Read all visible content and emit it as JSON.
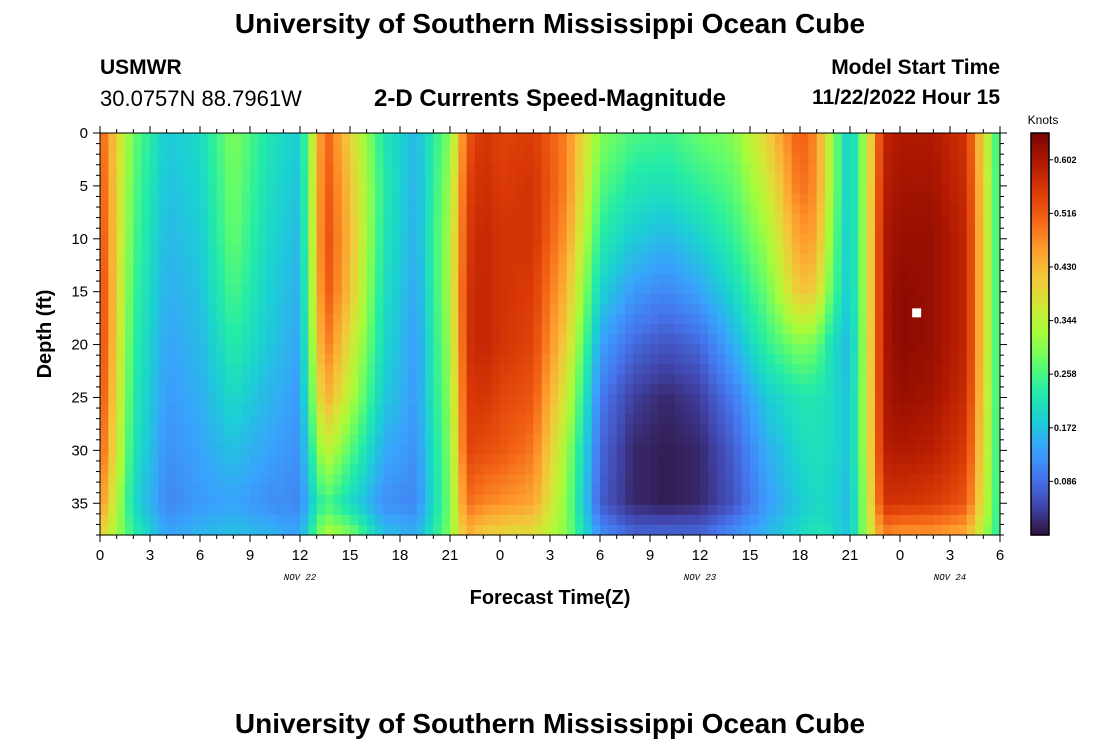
{
  "header": {
    "title": "University of Southern Mississippi Ocean Cube",
    "station": "USMWR",
    "coordinates": "30.0757N  88.7961W",
    "subtitle": "2-D Currents Speed-Magnitude",
    "model_start_label": "Model Start Time",
    "model_start_value": "11/22/2022 Hour 15"
  },
  "footer": {
    "title": "University of Southern Mississippi Ocean Cube"
  },
  "colors": {
    "colormap": [
      "#30123b",
      "#4145ab",
      "#4675ed",
      "#39a2fc",
      "#1bcfd4",
      "#24eca6",
      "#61fc6c",
      "#a4fc3b",
      "#d1e834",
      "#f3c63a",
      "#fe9b2d",
      "#f36315",
      "#d93806",
      "#b11901",
      "#7a0402"
    ]
  },
  "chart_data": {
    "type": "heatmap",
    "xlabel": "Forecast Time(Z)",
    "ylabel": "Depth (ft)",
    "colorbar_label": "Knots",
    "colorbar_ticks": [
      0.086,
      0.172,
      0.258,
      0.344,
      0.43,
      0.516,
      0.602
    ],
    "colorbar_tick_labels": [
      "0.086",
      "0.172",
      "0.258",
      "0.344",
      "0.430",
      "0.516",
      "0.602"
    ],
    "value_range": [
      0.0,
      0.645
    ],
    "x_ticks": [
      "0",
      "3",
      "6",
      "9",
      "12",
      "15",
      "18",
      "21",
      "0",
      "3",
      "6",
      "9",
      "12",
      "15",
      "18",
      "21",
      "0",
      "3",
      "6"
    ],
    "date_labels": [
      {
        "text": "NOV 22",
        "at_hour": 12
      },
      {
        "text": "NOV 23",
        "at_hour": 36
      },
      {
        "text": "NOV 24",
        "at_hour": 51
      }
    ],
    "y_ticks": [
      0,
      5,
      10,
      15,
      20,
      25,
      30,
      35
    ],
    "xlim_hours": [
      0,
      54
    ],
    "ylim_ft": [
      0,
      38
    ],
    "y_inverted": true,
    "x_hours": [
      0,
      2,
      4,
      6,
      8,
      10,
      12,
      13.5,
      15,
      17,
      19,
      21,
      22,
      23,
      24,
      26,
      28,
      30,
      32,
      34,
      36,
      38,
      40,
      42,
      43,
      44,
      45,
      46,
      47,
      48,
      50,
      52,
      54
    ],
    "depth_ft": [
      0,
      5,
      10,
      15,
      20,
      25,
      30,
      35,
      38
    ],
    "speed_knots_grid": [
      [
        0.52,
        0.28,
        0.18,
        0.2,
        0.3,
        0.22,
        0.18,
        0.52,
        0.4,
        0.22,
        0.16,
        0.3,
        0.52,
        0.56,
        0.54,
        0.55,
        0.48,
        0.3,
        0.26,
        0.25,
        0.28,
        0.3,
        0.4,
        0.52,
        0.47,
        0.3,
        0.17,
        0.35,
        0.58,
        0.6,
        0.6,
        0.56,
        0.22
      ],
      [
        0.53,
        0.27,
        0.17,
        0.19,
        0.29,
        0.21,
        0.17,
        0.53,
        0.42,
        0.23,
        0.15,
        0.32,
        0.54,
        0.57,
        0.55,
        0.56,
        0.48,
        0.27,
        0.22,
        0.21,
        0.24,
        0.27,
        0.36,
        0.5,
        0.47,
        0.3,
        0.17,
        0.35,
        0.59,
        0.61,
        0.61,
        0.57,
        0.22
      ],
      [
        0.54,
        0.26,
        0.16,
        0.18,
        0.28,
        0.2,
        0.16,
        0.54,
        0.43,
        0.22,
        0.15,
        0.33,
        0.55,
        0.58,
        0.56,
        0.56,
        0.46,
        0.23,
        0.18,
        0.16,
        0.19,
        0.24,
        0.32,
        0.46,
        0.45,
        0.28,
        0.17,
        0.35,
        0.6,
        0.62,
        0.62,
        0.58,
        0.22
      ],
      [
        0.55,
        0.25,
        0.15,
        0.17,
        0.26,
        0.19,
        0.15,
        0.53,
        0.42,
        0.21,
        0.14,
        0.33,
        0.56,
        0.58,
        0.56,
        0.55,
        0.43,
        0.19,
        0.13,
        0.11,
        0.14,
        0.2,
        0.28,
        0.42,
        0.4,
        0.26,
        0.17,
        0.35,
        0.6,
        0.63,
        0.62,
        0.58,
        0.22
      ],
      [
        0.55,
        0.24,
        0.14,
        0.16,
        0.23,
        0.18,
        0.14,
        0.5,
        0.38,
        0.2,
        0.13,
        0.32,
        0.56,
        0.58,
        0.56,
        0.54,
        0.4,
        0.14,
        0.08,
        0.06,
        0.08,
        0.15,
        0.24,
        0.3,
        0.28,
        0.2,
        0.16,
        0.35,
        0.6,
        0.63,
        0.62,
        0.58,
        0.22
      ],
      [
        0.54,
        0.23,
        0.13,
        0.15,
        0.2,
        0.16,
        0.13,
        0.45,
        0.34,
        0.18,
        0.13,
        0.31,
        0.55,
        0.56,
        0.54,
        0.52,
        0.36,
        0.1,
        0.04,
        0.02,
        0.04,
        0.1,
        0.18,
        0.22,
        0.22,
        0.2,
        0.17,
        0.35,
        0.6,
        0.62,
        0.61,
        0.57,
        0.22
      ],
      [
        0.52,
        0.22,
        0.12,
        0.14,
        0.17,
        0.14,
        0.12,
        0.36,
        0.27,
        0.15,
        0.12,
        0.3,
        0.54,
        0.53,
        0.52,
        0.49,
        0.32,
        0.08,
        0.02,
        0.01,
        0.02,
        0.07,
        0.15,
        0.2,
        0.21,
        0.2,
        0.17,
        0.35,
        0.59,
        0.6,
        0.59,
        0.55,
        0.22
      ],
      [
        0.48,
        0.2,
        0.11,
        0.13,
        0.14,
        0.12,
        0.11,
        0.26,
        0.2,
        0.12,
        0.11,
        0.29,
        0.5,
        0.48,
        0.47,
        0.45,
        0.3,
        0.07,
        0.02,
        0.01,
        0.02,
        0.06,
        0.13,
        0.18,
        0.2,
        0.19,
        0.16,
        0.34,
        0.56,
        0.56,
        0.55,
        0.52,
        0.22
      ],
      [
        0.4,
        0.24,
        0.14,
        0.16,
        0.17,
        0.16,
        0.14,
        0.34,
        0.3,
        0.17,
        0.15,
        0.3,
        0.44,
        0.4,
        0.39,
        0.38,
        0.3,
        0.12,
        0.08,
        0.08,
        0.08,
        0.12,
        0.16,
        0.2,
        0.22,
        0.2,
        0.17,
        0.33,
        0.48,
        0.46,
        0.46,
        0.44,
        0.22
      ]
    ],
    "marker": {
      "x_hour": 49,
      "depth_ft": 17
    }
  }
}
